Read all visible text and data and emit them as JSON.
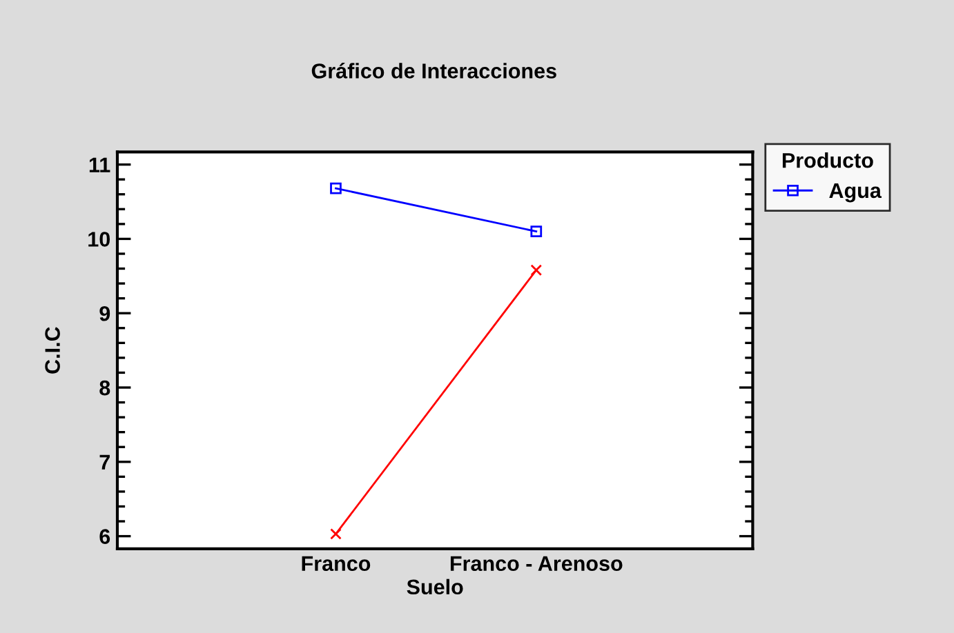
{
  "chart_data": {
    "type": "line",
    "title": "Gráfico de Interacciones",
    "xlabel": "Suelo",
    "ylabel": "C.I.C",
    "legend_title": "Producto",
    "categories": [
      "Franco",
      "Franco - Arenoso"
    ],
    "series": [
      {
        "name": "Agua",
        "color": "#0000ff",
        "marker": "square",
        "values": [
          10.68,
          10.1
        ]
      },
      {
        "color": "#ff0000",
        "marker": "cross",
        "values": [
          6.03,
          9.58
        ]
      }
    ],
    "ylim": [
      5.83,
      11.17
    ],
    "yticks": [
      6,
      {
        "value": 6.2,
        "label": null
      },
      {
        "value": 6.4,
        "label": null
      },
      {
        "value": 6.6,
        "label": null
      },
      {
        "value": 6.8,
        "label": null
      },
      7,
      {
        "value": 7.2,
        "label": null
      },
      {
        "value": 7.4,
        "label": null
      },
      {
        "value": 7.6,
        "label": null
      },
      {
        "value": 7.8,
        "label": null
      },
      8,
      {
        "value": 8.2,
        "label": null
      },
      {
        "value": 8.4,
        "label": null
      },
      {
        "value": 8.6,
        "label": null
      },
      {
        "value": 8.8,
        "label": null
      },
      9,
      {
        "value": 9.2,
        "label": null
      },
      {
        "value": 9.4,
        "label": null
      },
      {
        "value": 9.6,
        "label": null
      },
      {
        "value": 9.8,
        "label": null
      },
      10,
      {
        "value": 10.2,
        "label": null
      },
      {
        "value": 10.4,
        "label": null
      },
      {
        "value": 10.6,
        "label": null
      },
      {
        "value": 10.8,
        "label": null
      },
      11
    ],
    "grid": false,
    "legend": "right",
    "line_style": "solid"
  }
}
